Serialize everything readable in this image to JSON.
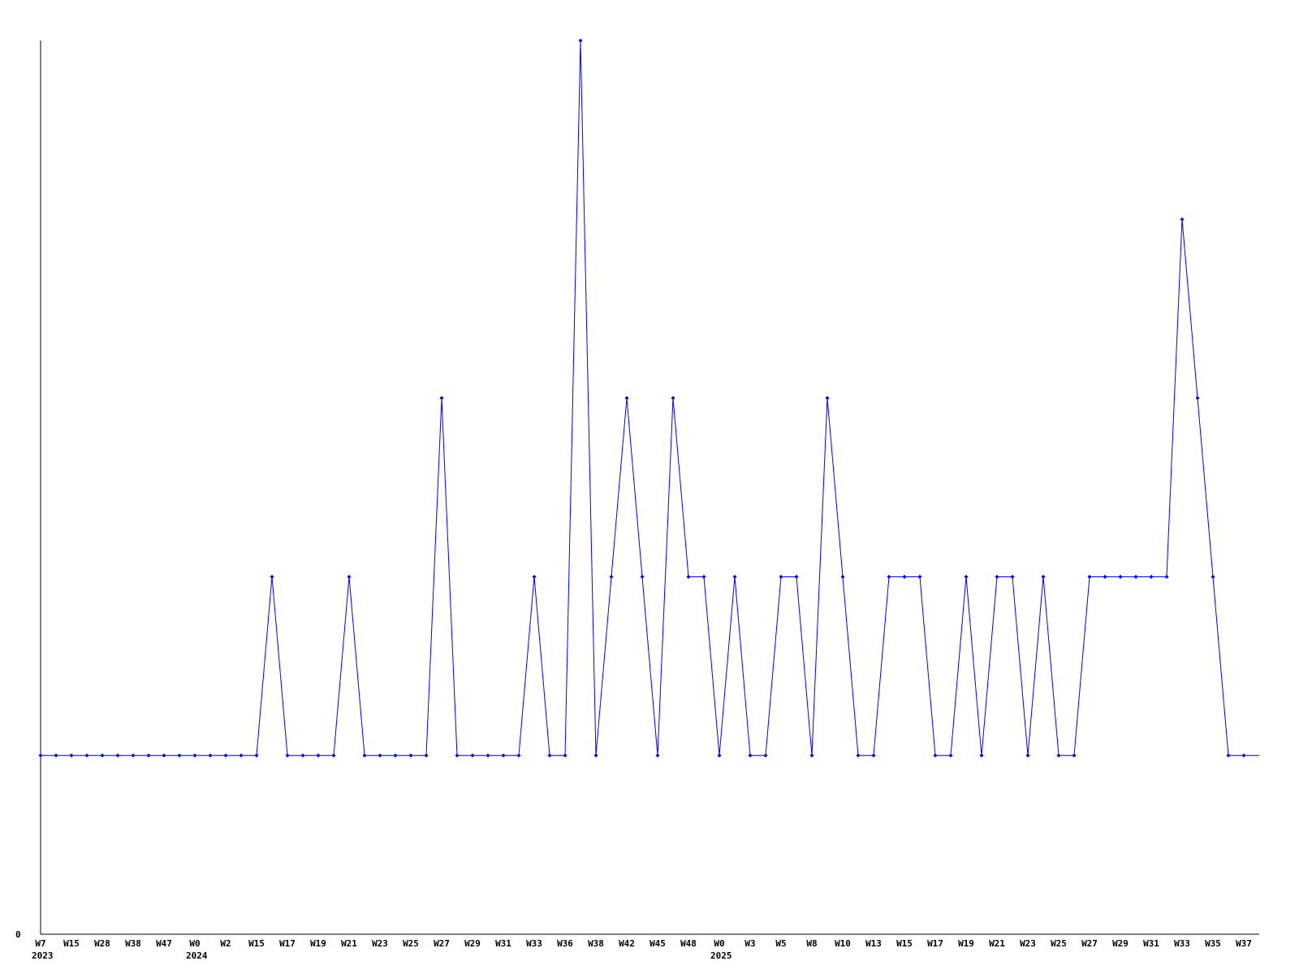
{
  "chart_data": {
    "type": "line",
    "title": "",
    "xlabel": "",
    "ylabel": "",
    "ylim": [
      0,
      5
    ],
    "grid": false,
    "legend": "none",
    "line_color": "#0000ff",
    "axis_color": "#000000",
    "y_tick_labels": [
      "0"
    ],
    "x_tick_labels": [
      "W7",
      "W15",
      "W28",
      "W38",
      "W47",
      "W0",
      "W2",
      "W15",
      "W17",
      "W19",
      "W21",
      "W23",
      "W25",
      "W27",
      "W29",
      "W31",
      "W33",
      "W36",
      "W38",
      "W42",
      "W45",
      "W48",
      "W0",
      "W3",
      "W5",
      "W8",
      "W10",
      "W13",
      "W15",
      "W17",
      "W19",
      "W21",
      "W23",
      "W25",
      "W27",
      "W29",
      "W31",
      "W33",
      "W35",
      "W37"
    ],
    "year_labels": [
      {
        "label": "2023",
        "tick_index": 0
      },
      {
        "label": "2024",
        "tick_index": 5
      },
      {
        "label": "2025",
        "tick_index": 22
      }
    ],
    "values": [
      1,
      1,
      1,
      1,
      1,
      1,
      1,
      1,
      1,
      1,
      1,
      1,
      1,
      1,
      1,
      2,
      1,
      1,
      1,
      1,
      2,
      1,
      1,
      1,
      1,
      1,
      3,
      1,
      1,
      1,
      1,
      1,
      2,
      1,
      1,
      5,
      1,
      2,
      3,
      2,
      1,
      3,
      2,
      2,
      1,
      2,
      1,
      1,
      2,
      2,
      1,
      3,
      2,
      1,
      1,
      2,
      2,
      2,
      1,
      1,
      2,
      1,
      2,
      2,
      1,
      2,
      1,
      1,
      2,
      2,
      2,
      2,
      2,
      2,
      4,
      3,
      2,
      1,
      1,
      1
    ]
  }
}
